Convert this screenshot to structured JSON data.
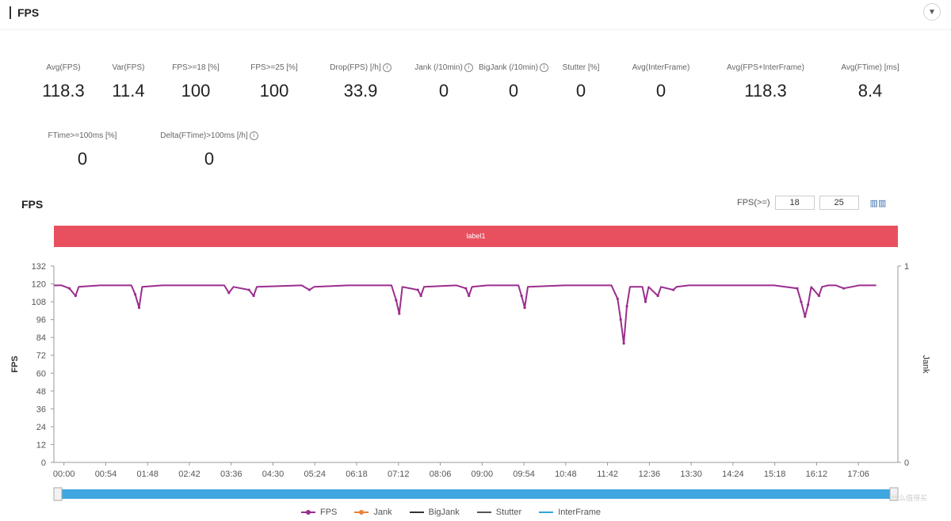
{
  "header": {
    "title": "FPS",
    "collapse_icon": "chevron-down-icon"
  },
  "metrics": [
    {
      "label": "Avg(FPS)",
      "value": "118.3",
      "info": false
    },
    {
      "label": "Var(FPS)",
      "value": "11.4",
      "info": false
    },
    {
      "label": "FPS>=18 [%]",
      "value": "100",
      "info": false
    },
    {
      "label": "FPS>=25 [%]",
      "value": "100",
      "info": false
    },
    {
      "label": "Drop(FPS) [/h]",
      "value": "33.9",
      "info": true
    },
    {
      "label": "Jank (/10min)",
      "value": "0",
      "info": true
    },
    {
      "label": "BigJank (/10min)",
      "value": "0",
      "info": true
    },
    {
      "label": "Stutter [%]",
      "value": "0",
      "info": false
    },
    {
      "label": "Avg(InterFrame)",
      "value": "0",
      "info": false
    },
    {
      "label": "Avg(FPS+InterFrame)",
      "value": "118.3",
      "info": false
    },
    {
      "label": "Avg(FTime) [ms]",
      "value": "8.4",
      "info": false
    },
    {
      "label": "FTime>=100ms [%]",
      "value": "0",
      "info": false
    },
    {
      "label": "Delta(FTime)>100ms [/h]",
      "value": "0",
      "info": true
    }
  ],
  "chart_section": {
    "title": "FPS",
    "threshold_label": "FPS(>=)",
    "threshold_1": "18",
    "threshold_2": "25",
    "label_bar": "label1"
  },
  "chart_data": {
    "type": "line",
    "ylabel": "FPS",
    "y2label": "Jank",
    "ylim": [
      0,
      132
    ],
    "y_ticks": [
      0,
      12,
      24,
      36,
      48,
      60,
      72,
      84,
      96,
      108,
      120,
      132
    ],
    "y2lim": [
      0,
      1
    ],
    "y2_ticks": [
      0,
      1
    ],
    "x_ticks": [
      "00:00",
      "00:54",
      "01:48",
      "02:42",
      "03:36",
      "04:30",
      "05:24",
      "06:18",
      "07:12",
      "08:06",
      "09:00",
      "09:54",
      "10:48",
      "11:42",
      "12:36",
      "13:30",
      "14:24",
      "15:18",
      "16:12",
      "17:06"
    ],
    "x_range_seconds": [
      0,
      1090
    ],
    "series": [
      {
        "name": "FPS",
        "color": "#9b2d8e",
        "points": [
          [
            0,
            119
          ],
          [
            10,
            119
          ],
          [
            20,
            117
          ],
          [
            28,
            112
          ],
          [
            32,
            118
          ],
          [
            60,
            119
          ],
          [
            100,
            119
          ],
          [
            105,
            113
          ],
          [
            110,
            104
          ],
          [
            114,
            118
          ],
          [
            140,
            119
          ],
          [
            200,
            119
          ],
          [
            220,
            119
          ],
          [
            226,
            114
          ],
          [
            232,
            118
          ],
          [
            252,
            116
          ],
          [
            258,
            112
          ],
          [
            262,
            118
          ],
          [
            320,
            119
          ],
          [
            330,
            116
          ],
          [
            336,
            118
          ],
          [
            380,
            119
          ],
          [
            436,
            119
          ],
          [
            442,
            109
          ],
          [
            446,
            100
          ],
          [
            450,
            118
          ],
          [
            470,
            116
          ],
          [
            474,
            112
          ],
          [
            478,
            118
          ],
          [
            520,
            119
          ],
          [
            532,
            117
          ],
          [
            536,
            112
          ],
          [
            540,
            118
          ],
          [
            560,
            119
          ],
          [
            600,
            119
          ],
          [
            604,
            112
          ],
          [
            608,
            104
          ],
          [
            612,
            118
          ],
          [
            660,
            119
          ],
          [
            700,
            119
          ],
          [
            720,
            119
          ],
          [
            728,
            110
          ],
          [
            732,
            96
          ],
          [
            736,
            80
          ],
          [
            740,
            105
          ],
          [
            744,
            118
          ],
          [
            760,
            118
          ],
          [
            764,
            108
          ],
          [
            768,
            118
          ],
          [
            780,
            112
          ],
          [
            784,
            118
          ],
          [
            800,
            116
          ],
          [
            804,
            118
          ],
          [
            820,
            119
          ],
          [
            840,
            119
          ],
          [
            870,
            119
          ],
          [
            900,
            119
          ],
          [
            930,
            119
          ],
          [
            960,
            117
          ],
          [
            965,
            108
          ],
          [
            970,
            98
          ],
          [
            974,
            106
          ],
          [
            978,
            118
          ],
          [
            988,
            112
          ],
          [
            992,
            118
          ],
          [
            1000,
            119
          ],
          [
            1010,
            119
          ],
          [
            1020,
            117
          ],
          [
            1030,
            118
          ],
          [
            1040,
            119
          ],
          [
            1062,
            119
          ]
        ]
      },
      {
        "name": "Jank",
        "color": "#e8823a",
        "points": []
      },
      {
        "name": "BigJank",
        "color": "#333333",
        "points": []
      },
      {
        "name": "Stutter",
        "color": "#555555",
        "points": []
      },
      {
        "name": "InterFrame",
        "color": "#2ea8d6",
        "points": []
      }
    ],
    "legend_position": "bottom",
    "grid": false
  },
  "watermark": "什么值得买"
}
